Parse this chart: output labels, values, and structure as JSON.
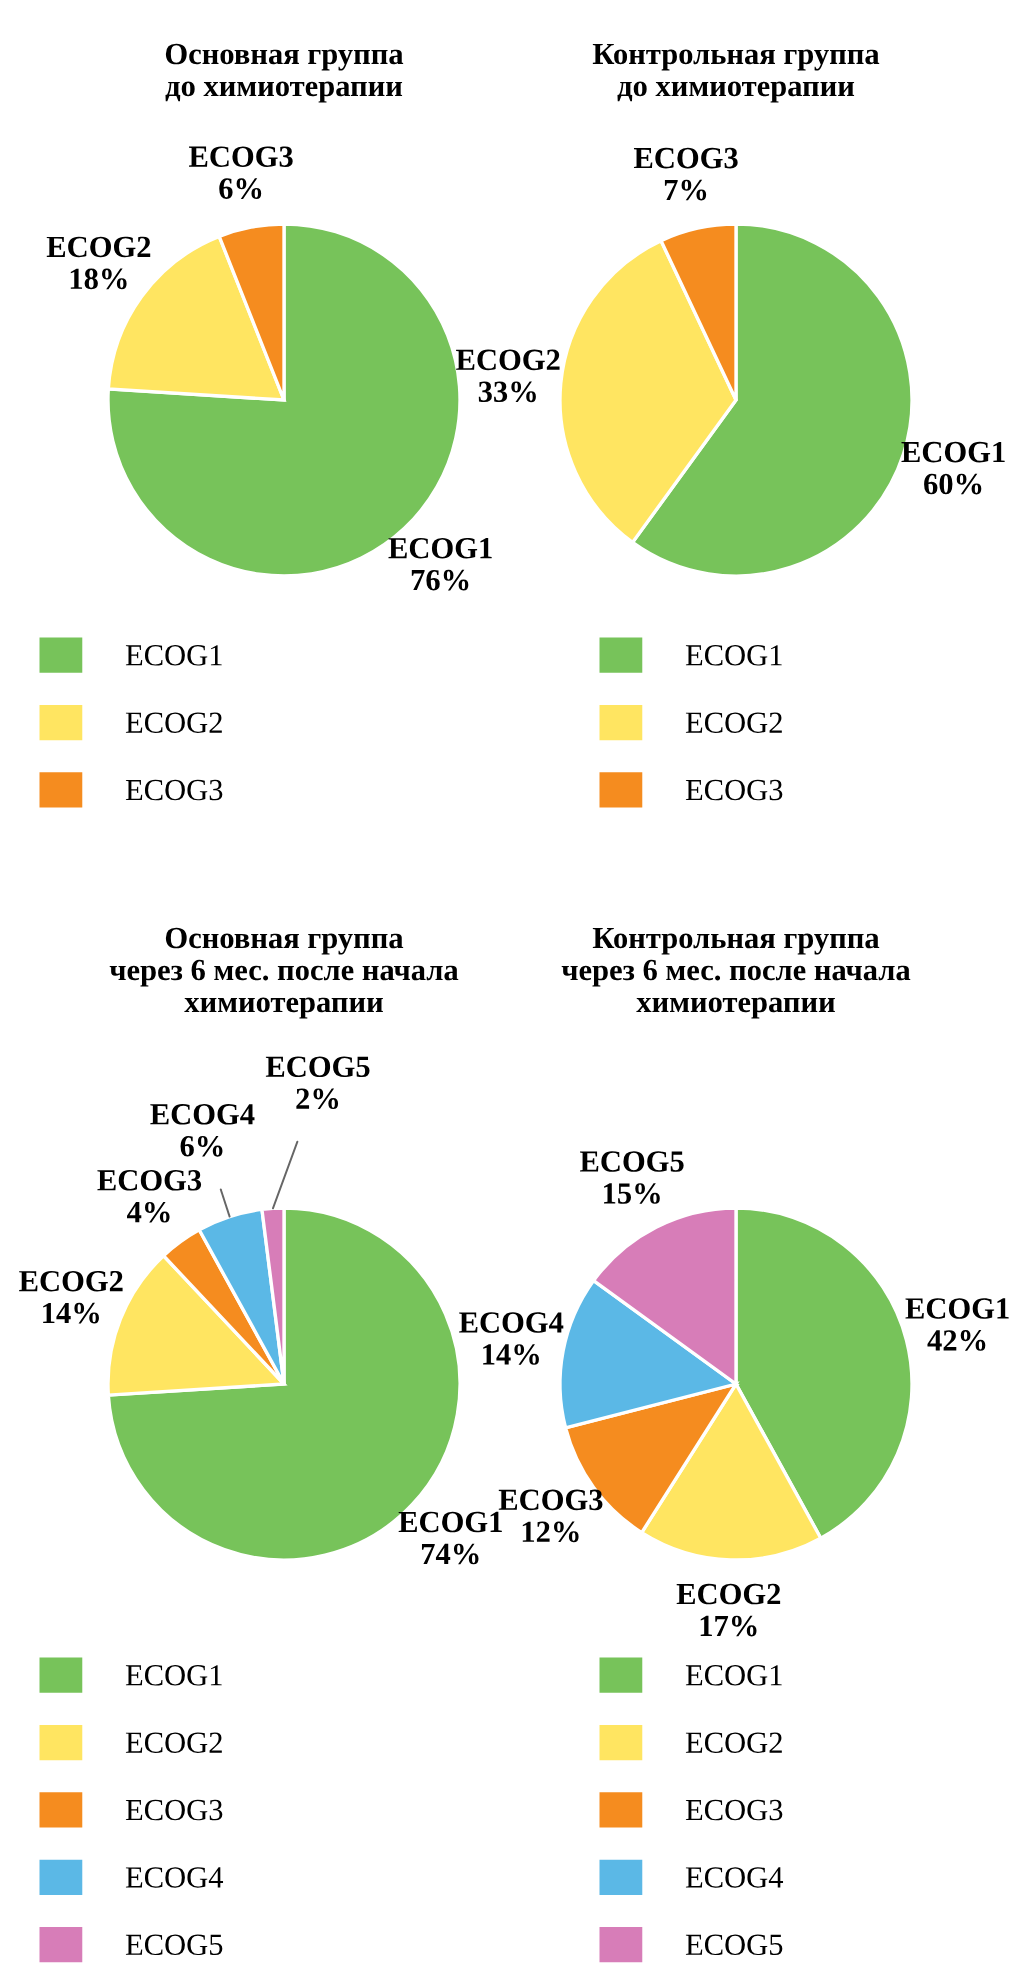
{
  "chart_data": [
    {
      "type": "pie",
      "title": "Основная группа\nдо химиотерапии",
      "categories": [
        "ECOG1",
        "ECOG2",
        "ECOG3"
      ],
      "values": [
        76,
        18,
        6
      ],
      "value_labels": [
        "76%",
        "18%",
        "6%"
      ],
      "colors": [
        "#77c35a",
        "#ffe561",
        "#f58c1f"
      ],
      "legend": "bottom"
    },
    {
      "type": "pie",
      "title": "Контрольная группа\nдо химиотерапии",
      "categories": [
        "ECOG1",
        "ECOG2",
        "ECOG3"
      ],
      "values": [
        60,
        33,
        7
      ],
      "value_labels": [
        "60%",
        "33%",
        "7%"
      ],
      "colors": [
        "#77c35a",
        "#ffe561",
        "#f58c1f"
      ],
      "legend": "bottom"
    },
    {
      "type": "pie",
      "title": "Основная группа\nчерез 6 мес. после начала\nхимиотерапии",
      "categories": [
        "ECOG1",
        "ECOG2",
        "ECOG3",
        "ECOG4",
        "ECOG5"
      ],
      "values": [
        74,
        14,
        4,
        6,
        2
      ],
      "value_labels": [
        "74%",
        "14%",
        "4%",
        "6%",
        "2%"
      ],
      "colors": [
        "#77c35a",
        "#ffe561",
        "#f58c1f",
        "#5bb8e6",
        "#d77db8"
      ],
      "legend": "bottom"
    },
    {
      "type": "pie",
      "title": "Контрольная группа\nчерез 6 мес. после начала\nхимиотерапии",
      "categories": [
        "ECOG1",
        "ECOG2",
        "ECOG3",
        "ECOG4",
        "ECOG5"
      ],
      "values": [
        42,
        17,
        12,
        14,
        15
      ],
      "value_labels": [
        "42%",
        "17%",
        "12%",
        "14%",
        "15%"
      ],
      "colors": [
        "#77c35a",
        "#ffe561",
        "#f58c1f",
        "#5bb8e6",
        "#d77db8"
      ],
      "legend": "bottom"
    }
  ]
}
